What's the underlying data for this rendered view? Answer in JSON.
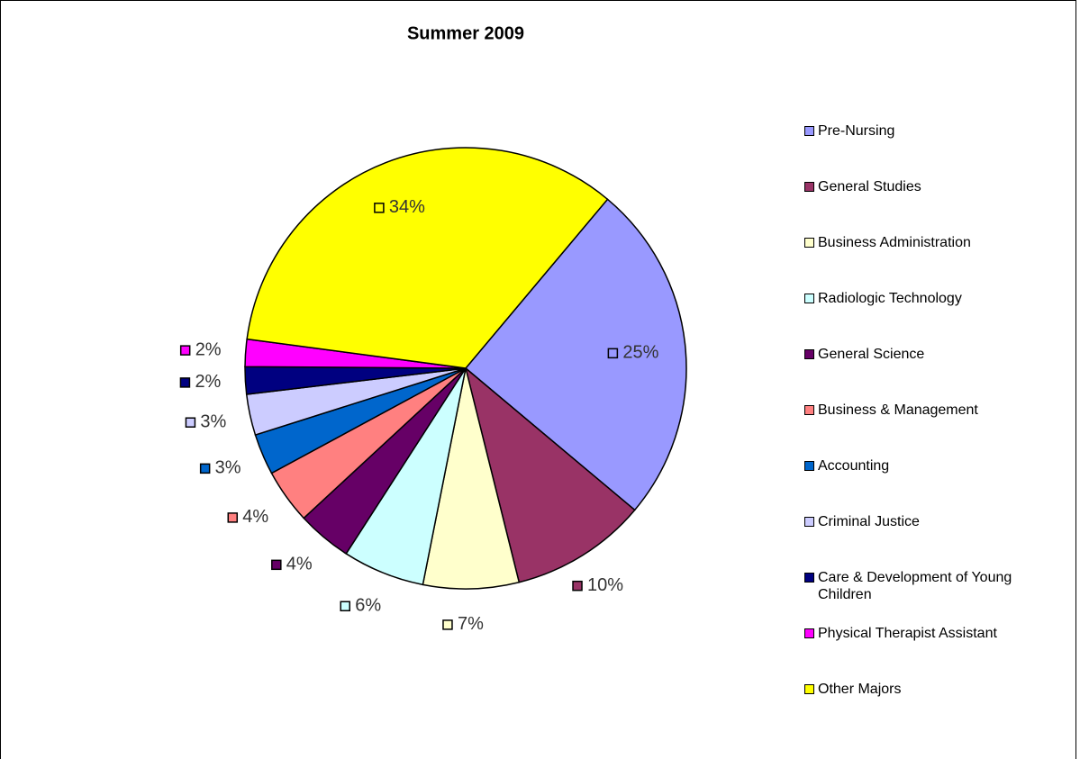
{
  "chart_data": {
    "type": "pie",
    "title": "Summer 2009",
    "categories": [
      "Pre-Nursing",
      "General Studies",
      "Business Administration",
      "Radiologic Technology",
      "General Science",
      "Business & Management",
      "Accounting",
      "Criminal Justice",
      "Care & Development of Young Children",
      "Physical Therapist Assistant",
      "Other Majors"
    ],
    "values": [
      25,
      10,
      7,
      6,
      4,
      4,
      3,
      3,
      2,
      2,
      34
    ],
    "value_labels": [
      "25%",
      "10%",
      "7%",
      "6%",
      "4%",
      "4%",
      "3%",
      "3%",
      "2%",
      "2%",
      "34%"
    ],
    "colors": [
      "#9999ff",
      "#993366",
      "#ffffcc",
      "#ccffff",
      "#660066",
      "#ff8080",
      "#0066cc",
      "#ccccff",
      "#000080",
      "#ff00ff",
      "#ffff00"
    ],
    "legend": "right"
  }
}
